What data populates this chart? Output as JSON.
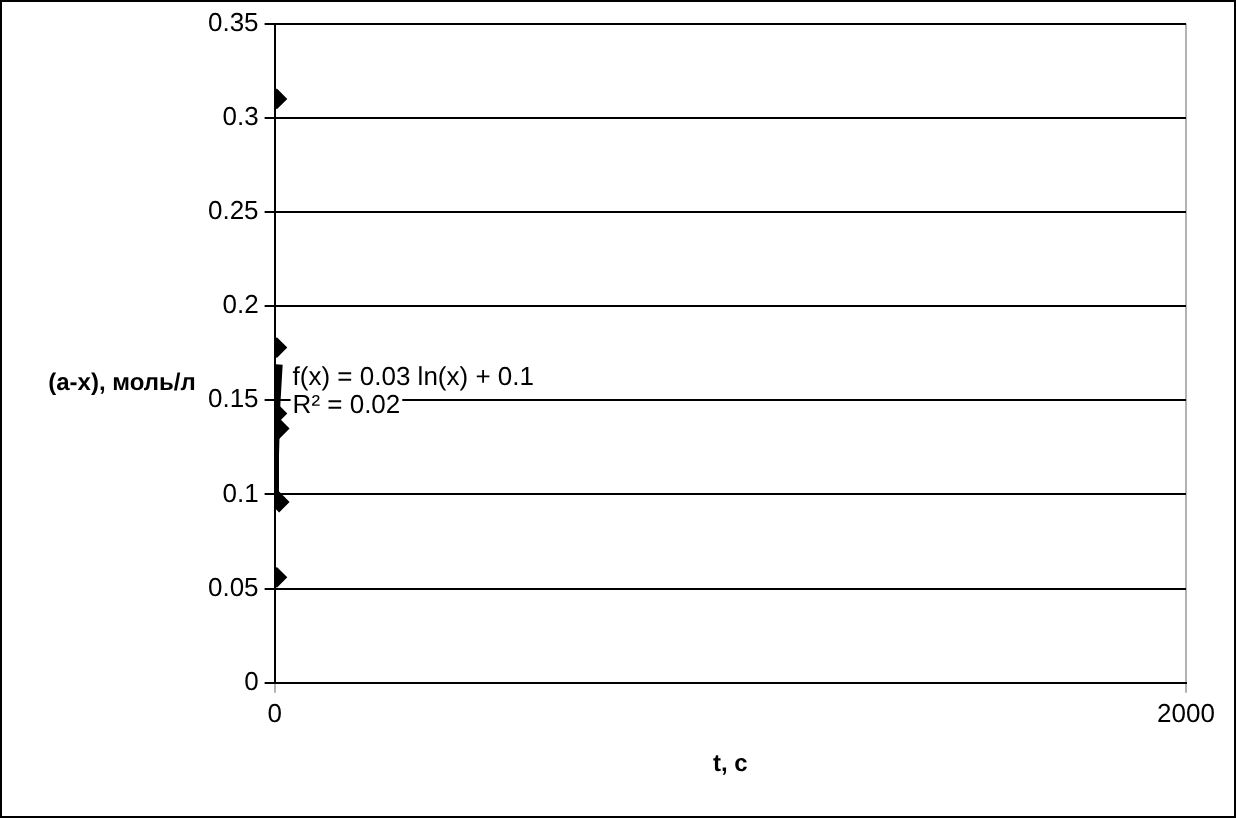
{
  "chart_data": {
    "type": "scatter",
    "xlabel": "t, с",
    "ylabel": "(a-x), моль/л",
    "series": [
      {
        "color": "#000000",
        "x": [
          5,
          5,
          5,
          10,
          10,
          5
        ],
        "values": [
          0.31,
          0.178,
          0.143,
          0.135,
          0.096,
          0.056
        ]
      },
      {
        "type": "line",
        "color": "#000000",
        "x": [
          1,
          2,
          5,
          10
        ],
        "values": [
          0.1,
          0.121,
          0.148,
          0.169
        ],
        "marker": "none"
      }
    ],
    "annotations": [
      "f(x) = 0.03 ln(x) + 0.1",
      "R² = 0.02"
    ],
    "xlim": [
      0,
      2000
    ],
    "xticks": [
      0,
      2000
    ],
    "ylim": [
      0,
      0.35
    ],
    "yticks": [
      0,
      0.05,
      0.1,
      0.15,
      0.2,
      0.25,
      0.3,
      0.35
    ],
    "grid": true,
    "legend": false,
    "marker": "diamond"
  }
}
